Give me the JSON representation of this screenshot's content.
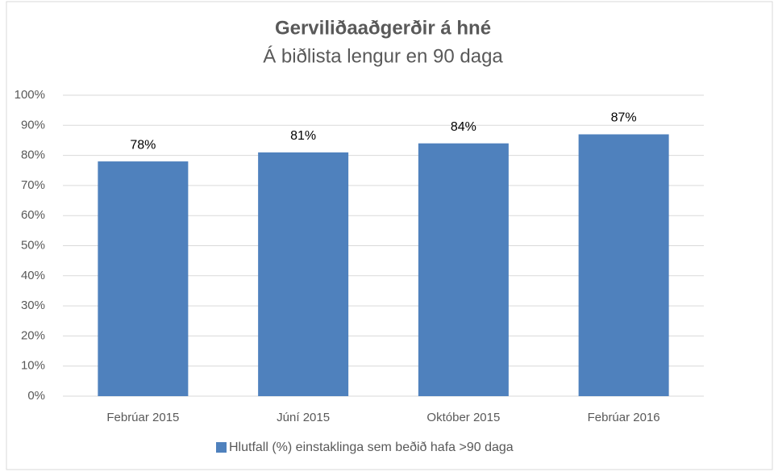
{
  "chart_data": {
    "type": "bar",
    "title": "Gerviliðaaðgerðir á hné",
    "subtitle": "Á biðlista lengur en 90 daga",
    "categories": [
      "Febrúar 2015",
      "Júní 2015",
      "Október 2015",
      "Febrúar 2016"
    ],
    "series": [
      {
        "name": "Hlutfall (%) einstaklinga sem beðið hafa >90 daga",
        "color": "#4f81bd",
        "values": [
          78,
          81,
          84,
          87
        ],
        "value_labels": [
          "78%",
          "81%",
          "84%",
          "87%"
        ]
      }
    ],
    "ylim": [
      0,
      100
    ],
    "yticks": [
      {
        "value": 0,
        "label": "0%"
      },
      {
        "value": 10,
        "label": "10%"
      },
      {
        "value": 20,
        "label": "20%"
      },
      {
        "value": 30,
        "label": "30%"
      },
      {
        "value": 40,
        "label": "40%"
      },
      {
        "value": 50,
        "label": "50%"
      },
      {
        "value": 60,
        "label": "60%"
      },
      {
        "value": 70,
        "label": "70%"
      },
      {
        "value": 80,
        "label": "80%"
      },
      {
        "value": 90,
        "label": "90%"
      },
      {
        "value": 100,
        "label": "100%"
      }
    ],
    "grid": true,
    "legend": "bottom"
  }
}
